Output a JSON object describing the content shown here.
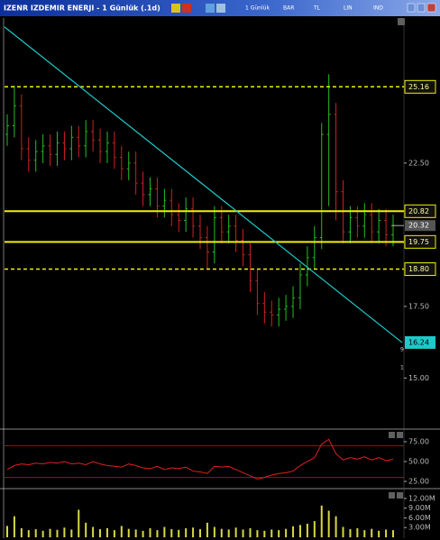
{
  "window": {
    "title": "IZENR IZDEMIR ENERJI - 1 Günlük (.1d)",
    "toolbar": [
      "1 Günlük",
      "BAR",
      "TL",
      "LIN",
      "IND"
    ]
  },
  "chart_data": [
    {
      "type": "ohlc",
      "up_color": "#22c022",
      "down_color": "#d02020",
      "open": [
        23.5,
        23.8,
        24.5,
        23.0,
        22.6,
        22.9,
        23.1,
        22.8,
        23.2,
        23.0,
        23.4,
        23.1,
        23.6,
        23.3,
        22.9,
        23.2,
        22.7,
        22.3,
        22.5,
        21.8,
        21.4,
        21.6,
        21.0,
        21.2,
        20.7,
        20.5,
        20.9,
        20.3,
        19.9,
        19.4,
        20.6,
        20.1,
        20.3,
        19.8,
        19.3,
        18.4,
        17.6,
        17.3,
        17.2,
        17.4,
        17.5,
        17.8,
        18.6,
        19.2,
        19.9,
        23.5,
        24.2,
        21.5,
        20.1,
        20.6,
        20.3,
        20.7,
        20.1,
        20.5,
        20.0
      ],
      "high": [
        24.2,
        25.2,
        24.9,
        23.4,
        23.3,
        23.5,
        23.5,
        23.6,
        23.6,
        23.8,
        23.8,
        24.0,
        24.0,
        23.7,
        23.6,
        23.6,
        23.1,
        22.9,
        22.9,
        22.2,
        22.0,
        22.0,
        21.6,
        21.6,
        21.1,
        21.3,
        21.3,
        20.7,
        20.3,
        21.0,
        21.0,
        20.7,
        20.7,
        20.2,
        19.7,
        18.8,
        18.0,
        17.7,
        17.8,
        17.9,
        18.2,
        19.0,
        19.6,
        20.3,
        23.9,
        25.6,
        24.6,
        21.9,
        21.0,
        21.0,
        21.1,
        21.1,
        20.9,
        20.9,
        20.7
      ],
      "low": [
        23.1,
        23.4,
        22.6,
        22.2,
        22.2,
        22.5,
        22.4,
        22.4,
        22.6,
        22.6,
        22.7,
        22.7,
        22.9,
        22.5,
        22.5,
        22.3,
        21.9,
        21.9,
        21.4,
        21.0,
        21.0,
        20.6,
        20.6,
        20.3,
        20.1,
        20.1,
        19.9,
        19.5,
        18.8,
        19.0,
        19.7,
        19.7,
        19.4,
        18.9,
        18.0,
        17.2,
        16.9,
        16.8,
        16.8,
        17.0,
        17.1,
        17.4,
        18.2,
        18.8,
        19.5,
        21.0,
        20.5,
        19.7,
        19.7,
        19.9,
        19.9,
        19.7,
        19.7,
        19.6,
        19.6
      ],
      "close": [
        23.8,
        24.5,
        23.0,
        22.6,
        22.9,
        23.1,
        22.8,
        23.2,
        23.0,
        23.4,
        23.1,
        23.6,
        23.3,
        22.9,
        23.2,
        22.7,
        22.3,
        22.5,
        21.8,
        21.4,
        21.6,
        21.0,
        21.2,
        20.7,
        20.5,
        20.9,
        20.3,
        19.9,
        19.4,
        20.6,
        20.1,
        20.3,
        19.8,
        19.3,
        18.4,
        17.6,
        17.3,
        17.2,
        17.4,
        17.5,
        17.8,
        18.6,
        19.2,
        19.9,
        23.5,
        24.2,
        21.5,
        20.1,
        20.6,
        20.3,
        20.7,
        20.1,
        20.5,
        20.0,
        20.32
      ],
      "ylim": [
        13.25,
        27.56
      ],
      "yticks": [
        {
          "value": 22.5,
          "label": "22.50"
        },
        {
          "value": 17.5,
          "label": "17.50"
        },
        {
          "value": 15,
          "label": "15.00"
        }
      ],
      "levels": [
        {
          "value": 25.16,
          "label": "25.16",
          "style": "dashed"
        },
        {
          "value": 20.82,
          "label": "20.82",
          "style": "solid"
        },
        {
          "value": 19.75,
          "label": "19.75",
          "style": "solid"
        },
        {
          "value": 18.8,
          "label": "18.80",
          "style": "dashed"
        }
      ],
      "level_color": "#f0f000",
      "last_price": 20.32,
      "trendline": {
        "start": 27.25,
        "end": 16.24,
        "color": "#20c8c8"
      },
      "side_marks": [
        "9",
        "1"
      ]
    },
    {
      "type": "line",
      "color": "#e02020",
      "values": [
        40,
        45,
        47,
        46,
        48,
        47,
        49,
        48,
        50,
        47,
        48,
        46,
        50,
        47,
        45,
        44,
        43,
        47,
        45,
        42,
        41,
        44,
        40,
        42,
        41,
        43,
        38,
        37,
        35,
        44,
        43,
        44,
        40,
        36,
        32,
        28,
        30,
        33,
        35,
        36,
        38,
        45,
        50,
        55,
        72,
        78,
        60,
        52,
        55,
        53,
        56,
        52,
        55,
        51,
        53
      ],
      "ylim": [
        18.2,
        88.6
      ],
      "yticks": [
        {
          "value": 75,
          "label": "75.00"
        },
        {
          "value": 50,
          "label": "50.00"
        },
        {
          "value": 25,
          "label": "25.00"
        }
      ],
      "bands": [
        70,
        30
      ],
      "band_color": "#c00000"
    },
    {
      "type": "bar",
      "color": "#d8d840",
      "values": [
        3.5,
        6.5,
        2.8,
        2.2,
        2.5,
        2.0,
        2.6,
        2.3,
        3.0,
        2.4,
        8.5,
        4.5,
        3.2,
        2.5,
        2.8,
        2.2,
        3.5,
        2.6,
        2.4,
        2.0,
        2.8,
        2.2,
        3.2,
        2.5,
        2.3,
        2.8,
        3.0,
        2.5,
        4.5,
        3.2,
        2.6,
        2.4,
        3.0,
        2.4,
        2.8,
        2.2,
        2.0,
        2.4,
        2.2,
        2.6,
        3.4,
        3.8,
        4.2,
        5.0,
        9.8,
        8.2,
        6.5,
        3.2,
        2.5,
        2.8,
        2.2,
        2.6,
        2.0,
        2.4,
        2.2
      ],
      "ylim": [
        0,
        14.2
      ],
      "yticks": [
        {
          "value": 12,
          "label": "12.00M"
        },
        {
          "value": 9,
          "label": "9.00M"
        },
        {
          "value": 6,
          "label": "6.00M"
        },
        {
          "value": 3,
          "label": "3.00M"
        }
      ]
    }
  ]
}
